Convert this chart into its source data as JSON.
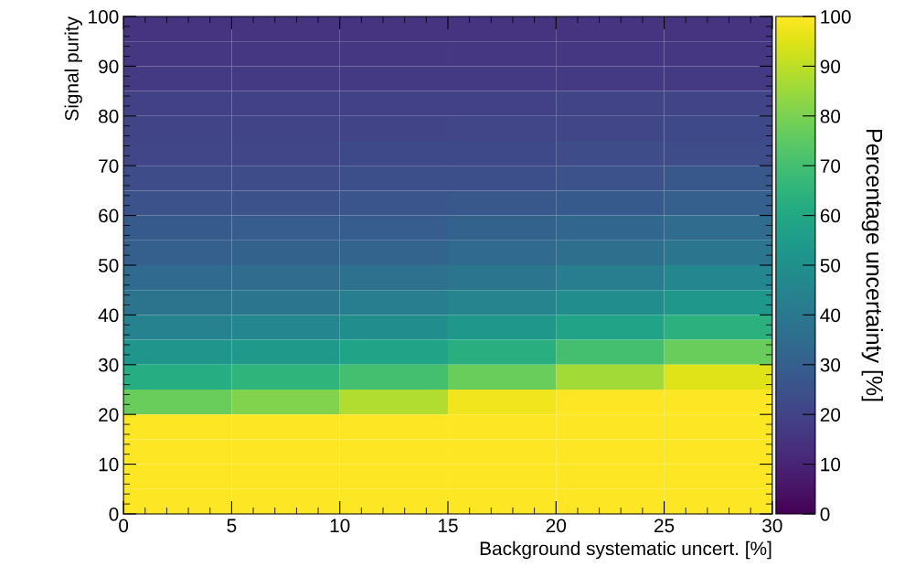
{
  "chart_data": {
    "type": "heatmap",
    "xlabel": "Background systematic uncert. [%]",
    "ylabel": "Signal purity",
    "clabel": "Percentage uncertainty [%]",
    "x": [
      2.5,
      7.5,
      12.5,
      17.5,
      22.5,
      27.5
    ],
    "y": [
      97.5,
      92.5,
      87.5,
      82.5,
      77.5,
      72.5,
      67.5,
      62.5,
      57.5,
      52.5,
      47.5,
      42.5,
      37.5,
      32.5,
      27.5,
      22.5,
      17.5,
      12.5,
      7.5,
      2.5
    ],
    "cells": [
      [
        15,
        15,
        15,
        15,
        15,
        15
      ],
      [
        16,
        16,
        16,
        16,
        16,
        16
      ],
      [
        17,
        17,
        17,
        17,
        17,
        17
      ],
      [
        19,
        19,
        19,
        19,
        20,
        20
      ],
      [
        20,
        20,
        20,
        21,
        21,
        22
      ],
      [
        21,
        21,
        22,
        22,
        23,
        23
      ],
      [
        23,
        23,
        24,
        24,
        25,
        27
      ],
      [
        25,
        25,
        26,
        27,
        28,
        30
      ],
      [
        28,
        29,
        29,
        31,
        33,
        35
      ],
      [
        30,
        31,
        32,
        34,
        36,
        39
      ],
      [
        34,
        35,
        37,
        39,
        42,
        46
      ],
      [
        38,
        39,
        42,
        45,
        49,
        53
      ],
      [
        44,
        46,
        49,
        53,
        58,
        64
      ],
      [
        52,
        54,
        58,
        63,
        70,
        77
      ],
      [
        62,
        65,
        70,
        77,
        86,
        95
      ],
      [
        77,
        81,
        88,
        98,
        100,
        100
      ],
      [
        100,
        100,
        100,
        100,
        100,
        100
      ],
      [
        100,
        100,
        100,
        100,
        100,
        100
      ],
      [
        100,
        100,
        100,
        100,
        100,
        100
      ],
      [
        100,
        100,
        100,
        100,
        100,
        100
      ]
    ],
    "xlim": [
      0,
      30
    ],
    "xticks": [
      0,
      5,
      10,
      15,
      20,
      25,
      30
    ],
    "ylim": [
      0,
      100
    ],
    "yticks": [
      0,
      10,
      20,
      30,
      40,
      50,
      60,
      70,
      80,
      90,
      100
    ],
    "clim": [
      0,
      100
    ],
    "cticks": [
      0,
      10,
      20,
      30,
      40,
      50,
      60,
      70,
      80,
      90,
      100
    ]
  }
}
